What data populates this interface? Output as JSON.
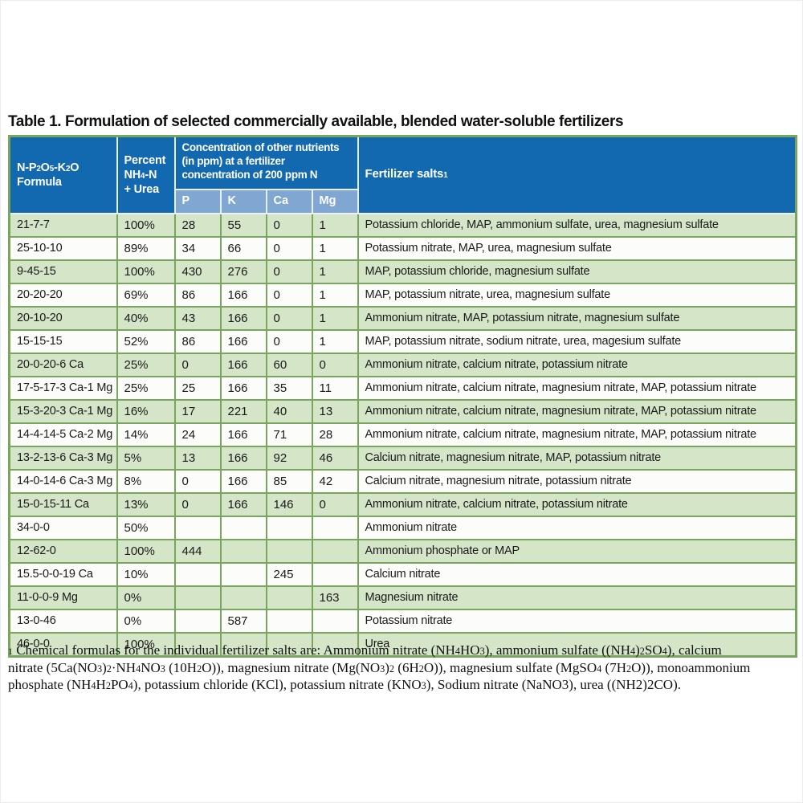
{
  "title": "Table 1. Formulation of selected commercially available, blended water-soluble fertilizers",
  "colors": {
    "header_bg": "#1269B0",
    "subheader_bg": "#7FA7D1",
    "header_text": "#FFFFFF",
    "header_divider": "#E9F0F8",
    "row_green": "#D5E5C8",
    "row_white": "#FCFDFA",
    "border_green": "#7AA55F"
  },
  "table": {
    "headers": {
      "formula": "N-P~2~O~5~-K~2~O Formula",
      "percent": "Percent NH~4~-N + Urea",
      "group": "Concentration of other nutrients (in ppm) at a fertilizer concentration of 200 ppm N",
      "sub": [
        "P",
        "K",
        "Ca",
        "Mg"
      ],
      "salts": "Fertilizer salts^1^"
    },
    "rows": [
      {
        "formula": "21-7-7",
        "percent": "100%",
        "p": "28",
        "k": "55",
        "ca": "0",
        "mg": "1",
        "salts": "Potassium chloride, MAP, ammonium sulfate, urea, magnesium sulfate"
      },
      {
        "formula": "25-10-10",
        "percent": "89%",
        "p": "34",
        "k": "66",
        "ca": "0",
        "mg": "1",
        "salts": "Potassium nitrate, MAP, urea, magnesium sulfate"
      },
      {
        "formula": "9-45-15",
        "percent": "100%",
        "p": "430",
        "k": "276",
        "ca": "0",
        "mg": "1",
        "salts": "MAP, potassium chloride, magnesium sulfate"
      },
      {
        "formula": "20-20-20",
        "percent": "69%",
        "p": "86",
        "k": "166",
        "ca": "0",
        "mg": "1",
        "salts": "MAP, potassium nitrate, urea, magnesium sulfate"
      },
      {
        "formula": "20-10-20",
        "percent": "40%",
        "p": "43",
        "k": "166",
        "ca": "0",
        "mg": "1",
        "salts": "Ammonium nitrate, MAP, potassium nitrate, magnesium sulfate"
      },
      {
        "formula": "15-15-15",
        "percent": "52%",
        "p": "86",
        "k": "166",
        "ca": "0",
        "mg": "1",
        "salts": "MAP, potassium nitrate, sodium nitrate, urea, magesium sulfate"
      },
      {
        "formula": "20-0-20-6 Ca",
        "percent": "25%",
        "p": "0",
        "k": "166",
        "ca": "60",
        "mg": "0",
        "salts": "Ammonium nitrate, calcium nitrate, potassium nitrate"
      },
      {
        "formula": "17-5-17-3 Ca-1 Mg",
        "percent": "25%",
        "p": "25",
        "k": "166",
        "ca": "35",
        "mg": "11",
        "salts": "Ammonium nitrate, calcium nitrate, magnesium nitrate, MAP, potassium nitrate"
      },
      {
        "formula": "15-3-20-3 Ca-1 Mg",
        "percent": "16%",
        "p": "17",
        "k": "221",
        "ca": "40",
        "mg": "13",
        "salts": "Ammonium nitrate, calcium nitrate, magnesium nitrate, MAP, potassium nitrate"
      },
      {
        "formula": "14-4-14-5 Ca-2 Mg",
        "percent": "14%",
        "p": "24",
        "k": "166",
        "ca": "71",
        "mg": "28",
        "salts": "Ammonium nitrate, calcium nitrate, magnesium nitrate, MAP, potassium nitrate"
      },
      {
        "formula": "13-2-13-6 Ca-3 Mg",
        "percent": "5%",
        "p": "13",
        "k": "166",
        "ca": "92",
        "mg": "46",
        "salts": "Calcium nitrate, magnesium nitrate, MAP, potassium nitrate"
      },
      {
        "formula": "14-0-14-6 Ca-3 Mg",
        "percent": "8%",
        "p": "0",
        "k": "166",
        "ca": "85",
        "mg": "42",
        "salts": "Calcium nitrate, magnesium nitrate, potassium nitrate"
      },
      {
        "formula": "15-0-15-11 Ca",
        "percent": "13%",
        "p": "0",
        "k": "166",
        "ca": "146",
        "mg": "0",
        "salts": "Ammonium nitrate, calcium nitrate, potassium nitrate"
      },
      {
        "formula": "34-0-0",
        "percent": "50%",
        "p": "",
        "k": "",
        "ca": "",
        "mg": "",
        "salts": "Ammonium nitrate"
      },
      {
        "formula": "12-62-0",
        "percent": "100%",
        "p": "444",
        "k": "",
        "ca": "",
        "mg": "",
        "salts": "Ammonium phosphate or MAP"
      },
      {
        "formula": "15.5-0-0-19 Ca",
        "percent": "10%",
        "p": "",
        "k": "",
        "ca": "245",
        "mg": "",
        "salts": "Calcium nitrate"
      },
      {
        "formula": "11-0-0-9 Mg",
        "percent": "0%",
        "p": "",
        "k": "",
        "ca": "",
        "mg": "163",
        "salts": "Magnesium nitrate"
      },
      {
        "formula": "13-0-46",
        "percent": "0%",
        "p": "",
        "k": "587",
        "ca": "",
        "mg": "",
        "salts": "Potassium nitrate"
      },
      {
        "formula": "46-0-0",
        "percent": "100%",
        "p": "",
        "k": "",
        "ca": "",
        "mg": "",
        "salts": "Urea"
      }
    ]
  },
  "footnote": {
    "lines": [
      "^1^ Chemical formulas for the individual fertilizer salts are: Ammonium nitrate (NH~4~HO~3~), ammonium sulfate ((NH~4~)~2~SO~4~), calcium",
      "nitrate (5Ca(NO~3~)~2~·NH~4~NO~3~ (10H~2~O)), magnesium nitrate (Mg(NO~3~)~2~ (6H~2~O)), magnesium sulfate (MgSO~4~ (7H~2~O)), monoammonium",
      "phosphate (NH~4~H~2~PO~4~), potassium chloride (KCl), potassium nitrate (KNO~3~), Sodium nitrate (NaNO3), urea ((NH2)2CO)."
    ]
  }
}
